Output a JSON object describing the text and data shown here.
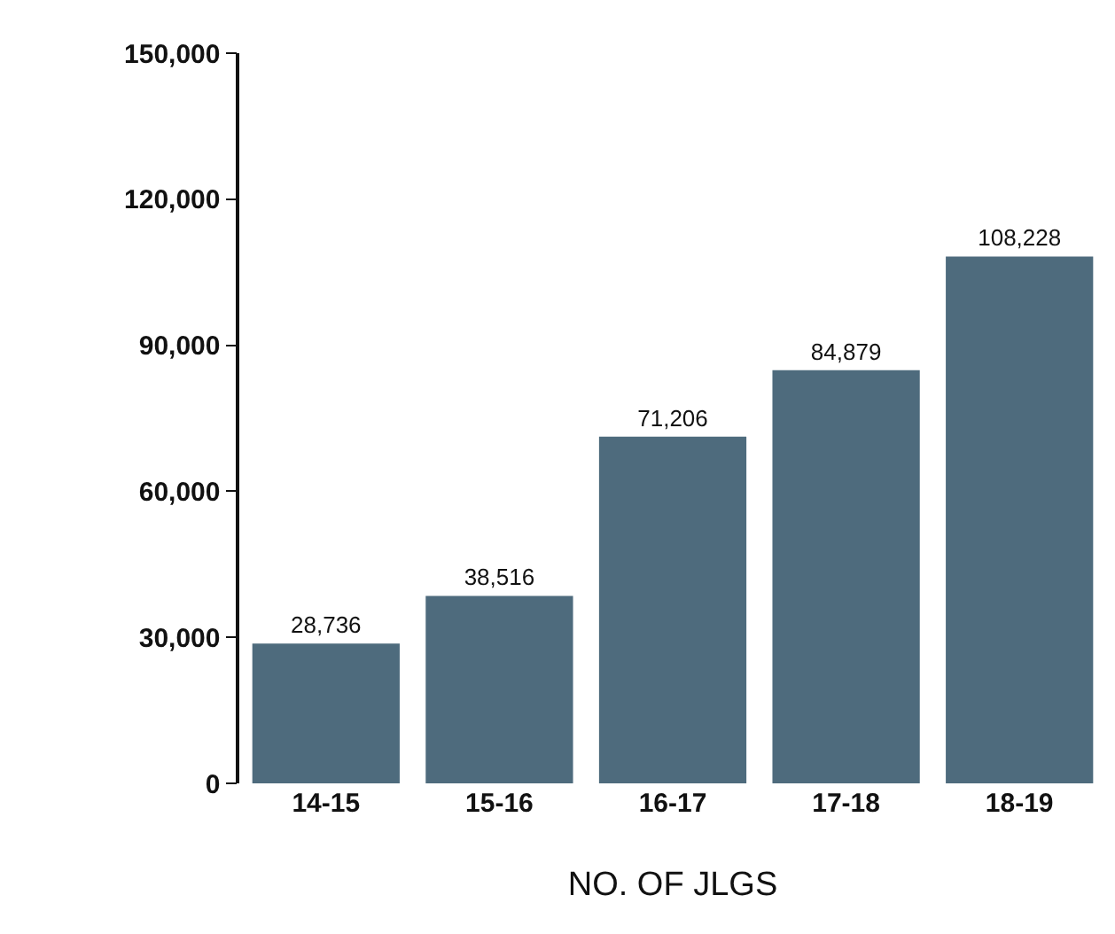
{
  "chart_data": {
    "type": "bar",
    "xlabel": "NO. OF JLGS",
    "categories": [
      "14-15",
      "15-16",
      "16-17",
      "17-18",
      "18-19"
    ],
    "series": [
      {
        "color": "#4e6b7d",
        "values": [
          28736,
          38516,
          71206,
          84879,
          108228
        ],
        "value_labels": [
          "28,736",
          "38,516",
          "71,206",
          "84,879",
          "108,228"
        ]
      }
    ],
    "ylim": [
      0,
      150000
    ],
    "yticks": [
      {
        "value": 0,
        "label": "0"
      },
      {
        "value": 30000,
        "label": "30,000"
      },
      {
        "value": 60000,
        "label": "60,000"
      },
      {
        "value": 90000,
        "label": "90,000"
      },
      {
        "value": 120000,
        "label": "120,000"
      },
      {
        "value": 150000,
        "label": "150,000"
      }
    ],
    "grid": false
  }
}
